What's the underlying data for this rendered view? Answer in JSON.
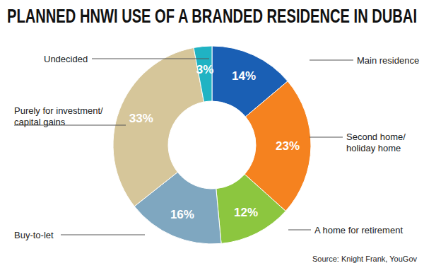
{
  "chart_data": {
    "type": "donut",
    "title": "PLANNED HNWI USE OF A BRANDED RESIDENCE IN DUBAI",
    "source": "Source: Knight Frank, YouGov",
    "categories": [
      "Main residence",
      "Second home/\nholiday home",
      "A home for retirement",
      "Buy-to-let",
      "Purely for investment/\ncapital gains",
      "Undecided"
    ],
    "values": [
      14,
      23,
      12,
      16,
      33,
      3
    ],
    "value_labels": [
      "14%",
      "23%",
      "12%",
      "16%",
      "33%",
      "3%"
    ],
    "colors": [
      "#1a5fb4",
      "#f5821f",
      "#8cc63f",
      "#7fa7c0",
      "#d6c69a",
      "#20b3c3"
    ],
    "data_labels": true
  }
}
